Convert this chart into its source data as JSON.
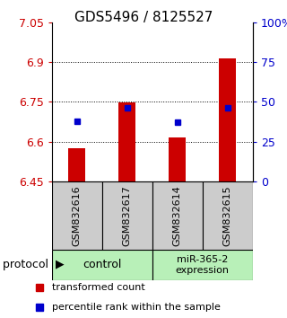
{
  "title": "GDS5496 / 8125527",
  "samples": [
    "GSM832616",
    "GSM832617",
    "GSM832614",
    "GSM832615"
  ],
  "group_names": [
    "control",
    "miR-365-2\nexpression"
  ],
  "group_color": "#b8f0b8",
  "bar_bottoms": [
    6.45,
    6.45,
    6.45,
    6.45
  ],
  "bar_tops": [
    6.575,
    6.748,
    6.615,
    6.915
  ],
  "blue_values": [
    6.675,
    6.728,
    6.672,
    6.728
  ],
  "ylim": [
    6.45,
    7.05
  ],
  "yticks_left": [
    6.45,
    6.6,
    6.75,
    6.9,
    7.05
  ],
  "yticks_right": [
    0,
    25,
    50,
    75,
    100
  ],
  "bar_color": "#cc0000",
  "blue_color": "#0000cc",
  "sample_bg": "#cccccc",
  "legend_red_label": "transformed count",
  "legend_blue_label": "percentile rank within the sample",
  "protocol_label": "protocol"
}
